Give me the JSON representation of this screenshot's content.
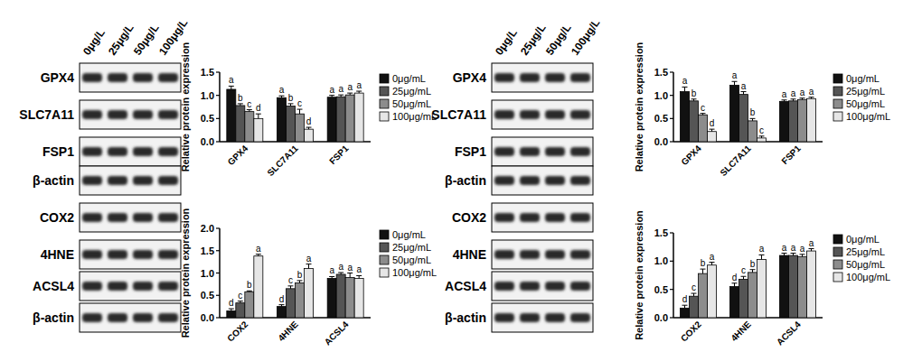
{
  "blots": [
    {
      "lanes": [
        "0μg/L",
        "25μg/L",
        "50μg/L",
        "100μg/L"
      ],
      "rows": [
        "GPX4",
        "SLC7A11",
        "FSP1",
        "β-actin",
        "COX2",
        "4HNE",
        "ACSL4",
        "β-actin"
      ]
    },
    {
      "lanes": [
        "0μg/L",
        "25μg/L",
        "50μg/L",
        "100μg/L"
      ],
      "rows": [
        "GPX4",
        "SLC7A11",
        "FSP1",
        "β-actin",
        "COX2",
        "4HNE",
        "ACSL4",
        "β-actin"
      ]
    }
  ],
  "chart_data": [
    {
      "type": "bar",
      "y_label": "Relative protein expression",
      "categories": [
        "GPX4",
        "SLC7A11",
        "FSP1"
      ],
      "ylim": [
        0,
        1.5
      ],
      "yticks": [
        {
          "value": 0,
          "label": "0.0"
        },
        {
          "value": 0.5,
          "label": "0.5"
        },
        {
          "value": 1,
          "label": "1.0"
        },
        {
          "value": 1.5,
          "label": "1.5"
        }
      ],
      "series": [
        {
          "name": "0μg/mL",
          "color": "#111111",
          "values": [
            1.13,
            0.95,
            0.96
          ],
          "errors": [
            0.07,
            0.04,
            0.04
          ],
          "annotations": [
            "a",
            "a",
            "a"
          ]
        },
        {
          "name": "25μg/mL",
          "color": "#555555",
          "values": [
            0.78,
            0.77,
            0.97
          ],
          "errors": [
            0.04,
            0.05,
            0.04
          ],
          "annotations": [
            "b",
            "b",
            "a"
          ]
        },
        {
          "name": "50μg/mL",
          "color": "#8c8c8c",
          "values": [
            0.65,
            0.6,
            1.01
          ],
          "errors": [
            0.04,
            0.1,
            0.04
          ],
          "annotations": [
            "c",
            "c",
            "a"
          ]
        },
        {
          "name": "100μg/mL",
          "color": "#e6e6e6",
          "values": [
            0.5,
            0.27,
            1.05
          ],
          "errors": [
            0.1,
            0.04,
            0.04
          ],
          "annotations": [
            "d",
            "d",
            "a"
          ]
        }
      ]
    },
    {
      "type": "bar",
      "y_label": "Relative protein expression",
      "categories": [
        "COX2",
        "4HNE",
        "ACSL4"
      ],
      "ylim": [
        0,
        2
      ],
      "yticks": [
        {
          "value": 0,
          "label": "0.0"
        },
        {
          "value": 0.5,
          "label": "0.5"
        },
        {
          "value": 1,
          "label": "1.0"
        },
        {
          "value": 1.5,
          "label": "1.5"
        },
        {
          "value": 2,
          "label": "2.0"
        }
      ],
      "series": [
        {
          "name": "0μg/mL",
          "color": "#111111",
          "values": [
            0.15,
            0.25,
            0.88
          ],
          "errors": [
            0.05,
            0.04,
            0.04
          ],
          "annotations": [
            "d",
            "d",
            "a"
          ]
        },
        {
          "name": "25μg/mL",
          "color": "#555555",
          "values": [
            0.33,
            0.65,
            0.97
          ],
          "errors": [
            0.04,
            0.06,
            0.04
          ],
          "annotations": [
            "c",
            "c",
            "a"
          ]
        },
        {
          "name": "50μg/mL",
          "color": "#8c8c8c",
          "values": [
            0.58,
            0.78,
            0.9
          ],
          "errors": [
            0.02,
            0.05,
            0.1
          ],
          "annotations": [
            "b",
            "b",
            "a"
          ]
        },
        {
          "name": "100μg/mL",
          "color": "#e6e6e6",
          "values": [
            1.38,
            1.1,
            0.88
          ],
          "errors": [
            0.04,
            0.1,
            0.06
          ],
          "annotations": [
            "a",
            "a",
            "a"
          ]
        }
      ]
    },
    {
      "type": "bar",
      "y_label": "Relative protein expression",
      "categories": [
        "GPX4",
        "SLC7A11",
        "FSP1"
      ],
      "ylim": [
        0,
        1.5
      ],
      "yticks": [
        {
          "value": 0,
          "label": "0.0"
        },
        {
          "value": 0.5,
          "label": "0.5"
        },
        {
          "value": 1,
          "label": "1.0"
        },
        {
          "value": 1.5,
          "label": "1.5"
        }
      ],
      "series": [
        {
          "name": "0μg/mL",
          "color": "#111111",
          "values": [
            1.08,
            1.22,
            0.87
          ],
          "errors": [
            0.1,
            0.08,
            0.03
          ],
          "annotations": [
            "a",
            "a",
            "a"
          ]
        },
        {
          "name": "25μg/mL",
          "color": "#555555",
          "values": [
            0.88,
            1.02,
            0.88
          ],
          "errors": [
            0.04,
            0.06,
            0.04
          ],
          "annotations": [
            "b",
            "a",
            "a"
          ]
        },
        {
          "name": "50μg/mL",
          "color": "#8c8c8c",
          "values": [
            0.58,
            0.45,
            0.91
          ],
          "errors": [
            0.03,
            0.05,
            0.03
          ],
          "annotations": [
            "c",
            "b",
            "a"
          ]
        },
        {
          "name": "100μg/mL",
          "color": "#e6e6e6",
          "values": [
            0.22,
            0.08,
            0.93
          ],
          "errors": [
            0.05,
            0.04,
            0.03
          ],
          "annotations": [
            "d",
            "c",
            "a"
          ]
        }
      ]
    },
    {
      "type": "bar",
      "y_label": "Relative protein expression",
      "categories": [
        "COX2",
        "4HNE",
        "ACSL4"
      ],
      "ylim": [
        0,
        1.5
      ],
      "yticks": [
        {
          "value": 0,
          "label": "0.0"
        },
        {
          "value": 0.5,
          "label": "0.5"
        },
        {
          "value": 1,
          "label": "1.0"
        },
        {
          "value": 1.5,
          "label": "1.5"
        }
      ],
      "series": [
        {
          "name": "0μg/mL",
          "color": "#111111",
          "values": [
            0.17,
            0.55,
            1.1
          ],
          "errors": [
            0.05,
            0.06,
            0.04
          ],
          "annotations": [
            "d",
            "d",
            "a"
          ]
        },
        {
          "name": "25μg/mL",
          "color": "#555555",
          "values": [
            0.38,
            0.68,
            1.1
          ],
          "errors": [
            0.05,
            0.05,
            0.04
          ],
          "annotations": [
            "c",
            "c",
            "a"
          ]
        },
        {
          "name": "50μg/mL",
          "color": "#8c8c8c",
          "values": [
            0.78,
            0.8,
            1.08
          ],
          "errors": [
            0.08,
            0.05,
            0.04
          ],
          "annotations": [
            "b",
            "b",
            "a"
          ]
        },
        {
          "name": "100μg/mL",
          "color": "#e6e6e6",
          "values": [
            0.93,
            1.03,
            1.18
          ],
          "errors": [
            0.05,
            0.08,
            0.04
          ],
          "annotations": [
            "a",
            "a",
            "a"
          ]
        }
      ]
    }
  ]
}
